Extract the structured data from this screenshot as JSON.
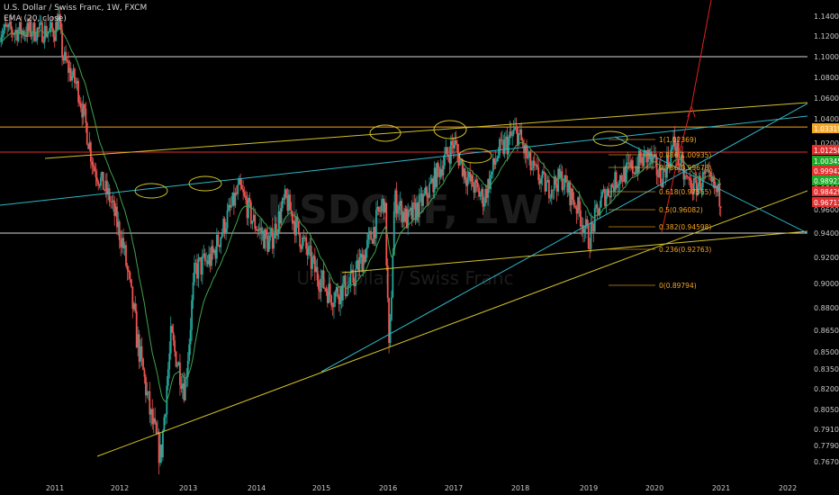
{
  "header": {
    "title": "U.S. Dollar / Swiss Franc, 1W, FXCM",
    "indicator": "EMA (20, close)"
  },
  "watermark": {
    "symbol": "USDCHF, 1W",
    "name": "U.S. Dollar / Swiss Franc"
  },
  "chart_data": {
    "type": "candlestick",
    "symbol": "USDCHF",
    "timeframe": "1W",
    "y_axis": {
      "ticks": [
        1.14,
        1.12,
        1.1,
        1.08,
        1.06,
        1.04,
        1.02,
        1.0,
        0.98,
        0.96,
        0.94,
        0.92,
        0.9,
        0.88,
        0.865,
        0.85,
        0.835,
        0.82,
        0.805,
        0.791,
        0.779,
        0.767
      ],
      "tick_labels": [
        "1.14000",
        "1.12000",
        "1.10000",
        "1.08000",
        "1.06000",
        "1.04000",
        "1.02000",
        "1.00000",
        "0.98000",
        "0.96000",
        "0.94000",
        "0.92000",
        "0.90000",
        "0.88000",
        "0.86500",
        "0.85000",
        "0.83500",
        "0.82000",
        "0.80500",
        "0.79100",
        "0.77900",
        "0.76700"
      ]
    },
    "x_axis": {
      "tick_labels": [
        "2011",
        "2012",
        "2013",
        "2014",
        "2015",
        "2016",
        "2017",
        "2018",
        "2019",
        "2020",
        "2021",
        "2022"
      ]
    },
    "price_tags": [
      {
        "label": "1.03319",
        "color": "#f5a623"
      },
      {
        "label": "1.01258",
        "color": "#e03030"
      },
      {
        "label": "1.00345",
        "color": "#1ea82a"
      },
      {
        "label": "0.99942",
        "color": "#e03030"
      },
      {
        "label": "0.98923",
        "color": "#1ea82a"
      },
      {
        "label": "0.98429",
        "color": "#e03030"
      },
      {
        "label": "0.96713",
        "color": "#e03030"
      }
    ],
    "fib_levels": [
      {
        "label": "1(1.02369)"
      },
      {
        "label": "0.886(1.00935)"
      },
      {
        "label": "0.786(0.99678)"
      },
      {
        "label": "0.618(0.97565)"
      },
      {
        "label": "0.5(0.96082)"
      },
      {
        "label": "0.382(0.94598)"
      },
      {
        "label": "0.236(0.92763)"
      },
      {
        "label": "0(0.89794)"
      }
    ],
    "series": [
      {
        "name": "EMA (20, close)",
        "color": "#4caf50"
      }
    ],
    "colors": {
      "up": "#26a69a",
      "down": "#ef5350",
      "trend_yellow": "#d4c22a",
      "trend_cyan": "#2fb7c9",
      "horizontal_white": "#d8d8d8",
      "horizontal_orange": "#f5a623",
      "horizontal_red": "#e03030",
      "projection": "#e02020",
      "fib": "#f5a623"
    }
  }
}
